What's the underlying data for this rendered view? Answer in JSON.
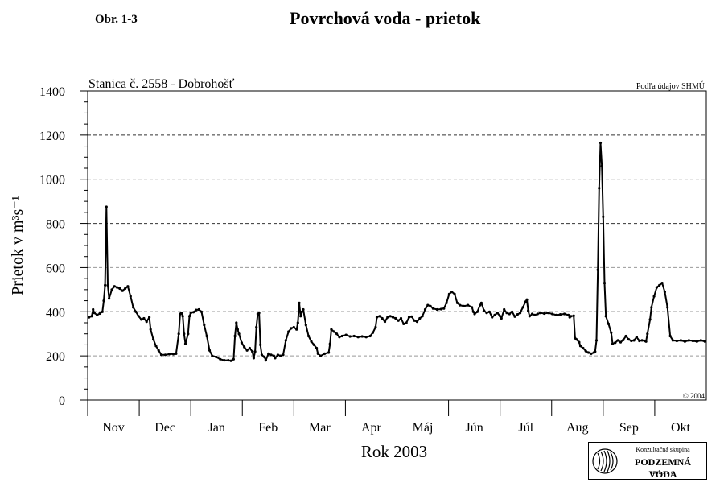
{
  "figure_number": "Obr. 1-3",
  "figure_title": "Povrchová voda - prietok",
  "logo": {
    "line1": "Konzultačná skupina",
    "line2": "PODZEMNÁ VODA",
    "line3": "spol. s r. o."
  },
  "chart_data": {
    "type": "line",
    "title": "Stanica č. 2558 - Dobrohošť",
    "source_note": "Podľa údajov SHMÚ",
    "copyright": "© 2004",
    "ylabel": "Prietok v m³s⁻¹",
    "xlabel": "Rok 2003",
    "ylim": [
      0,
      1400
    ],
    "yticks": [
      0,
      200,
      400,
      600,
      800,
      1000,
      1200,
      1400
    ],
    "months": [
      "Nov",
      "Dec",
      "Jan",
      "Feb",
      "Mar",
      "Apr",
      "Máj",
      "Jún",
      "Júl",
      "Aug",
      "Sep",
      "Okt"
    ],
    "grid": "horizontal dashed",
    "series": [
      {
        "color": "#000000",
        "points": [
          [
            1,
            375
          ],
          [
            3,
            380
          ],
          [
            4,
            410
          ],
          [
            5,
            395
          ],
          [
            7,
            385
          ],
          [
            9,
            392
          ],
          [
            11,
            400
          ],
          [
            12,
            450
          ],
          [
            13,
            520
          ],
          [
            14,
            875
          ],
          [
            15,
            520
          ],
          [
            16,
            460
          ],
          [
            18,
            500
          ],
          [
            20,
            515
          ],
          [
            22,
            510
          ],
          [
            24,
            505
          ],
          [
            26,
            495
          ],
          [
            28,
            505
          ],
          [
            30,
            515
          ],
          [
            32,
            470
          ],
          [
            34,
            420
          ],
          [
            36,
            400
          ],
          [
            38,
            380
          ],
          [
            40,
            365
          ],
          [
            42,
            370
          ],
          [
            44,
            355
          ],
          [
            46,
            375
          ],
          [
            47,
            320
          ],
          [
            49,
            275
          ],
          [
            51,
            245
          ],
          [
            53,
            225
          ],
          [
            55,
            205
          ],
          [
            58,
            205
          ],
          [
            61,
            208
          ],
          [
            64,
            208
          ],
          [
            66,
            210
          ],
          [
            68,
            300
          ],
          [
            69,
            390
          ],
          [
            70,
            395
          ],
          [
            71,
            380
          ],
          [
            72,
            300
          ],
          [
            73,
            255
          ],
          [
            75,
            300
          ],
          [
            76,
            380
          ],
          [
            77,
            395
          ],
          [
            79,
            398
          ],
          [
            81,
            408
          ],
          [
            83,
            410
          ],
          [
            85,
            400
          ],
          [
            87,
            340
          ],
          [
            89,
            290
          ],
          [
            91,
            225
          ],
          [
            93,
            200
          ],
          [
            96,
            195
          ],
          [
            99,
            185
          ],
          [
            102,
            180
          ],
          [
            105,
            180
          ],
          [
            107,
            178
          ],
          [
            109,
            185
          ],
          [
            110,
            290
          ],
          [
            111,
            350
          ],
          [
            112,
            320
          ],
          [
            113,
            300
          ],
          [
            115,
            260
          ],
          [
            117,
            240
          ],
          [
            119,
            225
          ],
          [
            121,
            235
          ],
          [
            123,
            220
          ],
          [
            124,
            190
          ],
          [
            125,
            220
          ],
          [
            126,
            330
          ],
          [
            127,
            390
          ],
          [
            128,
            395
          ],
          [
            129,
            250
          ],
          [
            130,
            205
          ],
          [
            132,
            195
          ],
          [
            133,
            180
          ],
          [
            135,
            210
          ],
          [
            137,
            205
          ],
          [
            139,
            200
          ],
          [
            140,
            190
          ],
          [
            142,
            205
          ],
          [
            144,
            200
          ],
          [
            146,
            205
          ],
          [
            148,
            270
          ],
          [
            150,
            310
          ],
          [
            152,
            325
          ],
          [
            154,
            330
          ],
          [
            156,
            320
          ],
          [
            157,
            350
          ],
          [
            158,
            440
          ],
          [
            159,
            380
          ],
          [
            160,
            400
          ],
          [
            161,
            410
          ],
          [
            163,
            340
          ],
          [
            165,
            290
          ],
          [
            167,
            265
          ],
          [
            169,
            250
          ],
          [
            171,
            235
          ],
          [
            172,
            210
          ],
          [
            174,
            200
          ],
          [
            177,
            210
          ],
          [
            180,
            215
          ],
          [
            181,
            255
          ],
          [
            182,
            320
          ],
          [
            184,
            310
          ],
          [
            186,
            300
          ],
          [
            188,
            285
          ],
          [
            190,
            290
          ],
          [
            193,
            295
          ],
          [
            196,
            288
          ],
          [
            199,
            290
          ],
          [
            202,
            285
          ],
          [
            205,
            288
          ],
          [
            208,
            285
          ],
          [
            211,
            290
          ],
          [
            213,
            305
          ],
          [
            215,
            330
          ],
          [
            216,
            375
          ],
          [
            218,
            380
          ],
          [
            220,
            370
          ],
          [
            222,
            355
          ],
          [
            224,
            375
          ],
          [
            226,
            380
          ],
          [
            228,
            375
          ],
          [
            230,
            370
          ],
          [
            232,
            360
          ],
          [
            234,
            370
          ],
          [
            236,
            345
          ],
          [
            238,
            350
          ],
          [
            240,
            375
          ],
          [
            242,
            378
          ],
          [
            244,
            360
          ],
          [
            246,
            355
          ],
          [
            248,
            370
          ],
          [
            250,
            380
          ],
          [
            252,
            410
          ],
          [
            254,
            430
          ],
          [
            256,
            425
          ],
          [
            258,
            415
          ],
          [
            261,
            410
          ],
          [
            264,
            412
          ],
          [
            266,
            415
          ],
          [
            268,
            440
          ],
          [
            270,
            480
          ],
          [
            272,
            490
          ],
          [
            274,
            480
          ],
          [
            276,
            440
          ],
          [
            278,
            430
          ],
          [
            281,
            425
          ],
          [
            284,
            430
          ],
          [
            287,
            420
          ],
          [
            288,
            400
          ],
          [
            289,
            390
          ],
          [
            291,
            400
          ],
          [
            293,
            430
          ],
          [
            294,
            440
          ],
          [
            296,
            405
          ],
          [
            298,
            395
          ],
          [
            300,
            400
          ],
          [
            302,
            375
          ],
          [
            304,
            385
          ],
          [
            306,
            395
          ],
          [
            308,
            380
          ],
          [
            309,
            370
          ],
          [
            311,
            410
          ],
          [
            313,
            395
          ],
          [
            315,
            390
          ],
          [
            317,
            400
          ],
          [
            319,
            378
          ],
          [
            321,
            388
          ],
          [
            323,
            395
          ],
          [
            325,
            420
          ],
          [
            327,
            445
          ],
          [
            328,
            455
          ],
          [
            329,
            405
          ],
          [
            330,
            380
          ],
          [
            332,
            390
          ],
          [
            334,
            385
          ],
          [
            336,
            390
          ],
          [
            338,
            395
          ],
          [
            341,
            392
          ],
          [
            344,
            395
          ],
          [
            347,
            390
          ],
          [
            350,
            385
          ],
          [
            353,
            388
          ],
          [
            356,
            390
          ],
          [
            359,
            385
          ],
          [
            360,
            375
          ],
          [
            361,
            380
          ],
          [
            363,
            382
          ],
          [
            364,
            280
          ],
          [
            365,
            275
          ],
          [
            367,
            262
          ],
          [
            368,
            245
          ],
          [
            370,
            235
          ],
          [
            372,
            222
          ],
          [
            374,
            215
          ],
          [
            376,
            210
          ],
          [
            378,
            215
          ],
          [
            379,
            220
          ],
          [
            380,
            270
          ],
          [
            381,
            590
          ],
          [
            382,
            960
          ],
          [
            383,
            1165
          ],
          [
            384,
            1060
          ],
          [
            385,
            830
          ],
          [
            386,
            530
          ],
          [
            387,
            380
          ],
          [
            389,
            345
          ],
          [
            391,
            305
          ],
          [
            392,
            255
          ],
          [
            394,
            260
          ],
          [
            396,
            270
          ],
          [
            398,
            262
          ],
          [
            400,
            272
          ],
          [
            402,
            290
          ],
          [
            404,
            275
          ],
          [
            406,
            268
          ],
          [
            408,
            270
          ],
          [
            410,
            285
          ],
          [
            412,
            268
          ],
          [
            414,
            270
          ],
          [
            416,
            268
          ],
          [
            417,
            265
          ],
          [
            418,
            300
          ],
          [
            420,
            365
          ],
          [
            421,
            420
          ],
          [
            423,
            470
          ],
          [
            425,
            510
          ],
          [
            427,
            520
          ],
          [
            429,
            530
          ],
          [
            431,
            490
          ],
          [
            433,
            420
          ],
          [
            435,
            290
          ],
          [
            437,
            270
          ],
          [
            440,
            268
          ],
          [
            443,
            270
          ],
          [
            446,
            265
          ],
          [
            449,
            270
          ],
          [
            452,
            268
          ],
          [
            455,
            265
          ],
          [
            458,
            270
          ],
          [
            461,
            265
          ]
        ]
      }
    ]
  }
}
